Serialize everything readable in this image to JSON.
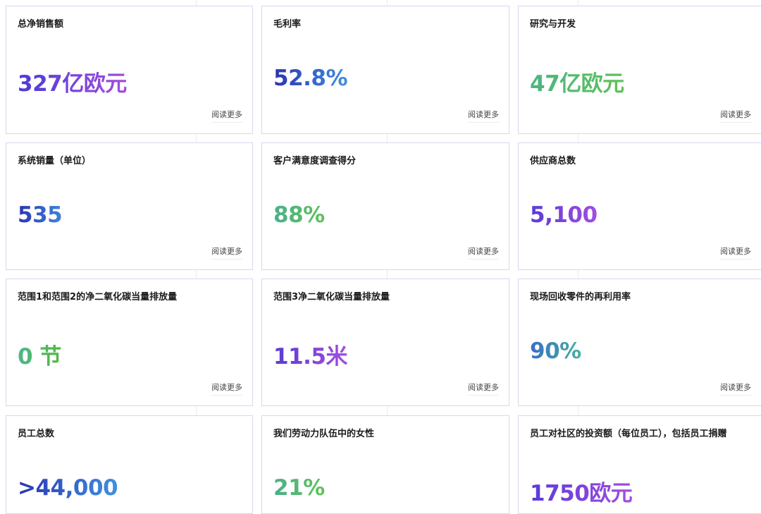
{
  "read_more_label": "阅读更多",
  "cards": [
    {
      "title": "总净销售额",
      "value": "327亿欧元",
      "gradient": [
        "#4b3bd6",
        "#a24de0"
      ]
    },
    {
      "title": "毛利率",
      "value": "52.8%",
      "gradient": [
        "#2a34b0",
        "#3e90e2"
      ]
    },
    {
      "title": "研究与开发",
      "value": "47亿欧元",
      "gradient": [
        "#4bb582",
        "#5ec258"
      ]
    },
    {
      "title": "系统销量（单位）",
      "value": "535",
      "gradient": [
        "#2a34b0",
        "#3e84dc"
      ]
    },
    {
      "title": "客户满意度调查得分",
      "value": "88%",
      "gradient": [
        "#4bb08a",
        "#5ec258"
      ]
    },
    {
      "title": "供应商总数",
      "value": "5,100",
      "gradient": [
        "#5a3bd8",
        "#a24de0"
      ]
    },
    {
      "title": "范围1和范围2的净二氧化碳当量排放量",
      "value": "0 节",
      "gradient": [
        "#4bb88a",
        "#50b840"
      ]
    },
    {
      "title": "范围3净二氧化碳当量排放量",
      "value": "11.5米",
      "gradient": [
        "#5a3bd8",
        "#a24de0"
      ]
    },
    {
      "title": "现场回收零件的再利用率",
      "value": "90%",
      "gradient": [
        "#3a6fc4",
        "#44b0a0"
      ]
    },
    {
      "title": "员工总数",
      "value": ">44,000",
      "gradient": [
        "#2a34b0",
        "#3e90e2"
      ]
    },
    {
      "title": "我们劳动力队伍中的女性",
      "value": "21%",
      "gradient": [
        "#4bb08a",
        "#5ec258"
      ]
    },
    {
      "title": "员工对社区的投资额（每位员工），包括员工捐赠",
      "value": "1750欧元",
      "gradient": [
        "#5a3bd8",
        "#a24de0"
      ]
    }
  ]
}
